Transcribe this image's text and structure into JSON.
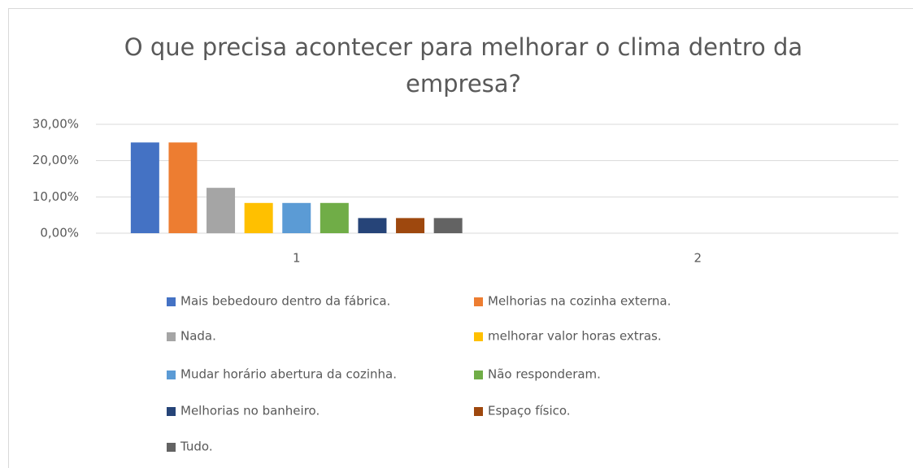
{
  "chart_data": {
    "type": "bar",
    "title": "O que precisa acontecer para melhorar o clima dentro da empresa?",
    "categories": [
      "1",
      "2"
    ],
    "series": [
      {
        "name": "Mais bebedouro dentro da fábrica.",
        "color": "#4472c4",
        "values": [
          25,
          null
        ]
      },
      {
        "name": "Melhorias na cozinha externa.",
        "color": "#ed7d31",
        "values": [
          25,
          null
        ]
      },
      {
        "name": "Nada.",
        "color": "#a5a5a5",
        "values": [
          12.5,
          null
        ]
      },
      {
        "name": "melhorar valor horas extras.",
        "color": "#ffc000",
        "values": [
          8.33,
          null
        ]
      },
      {
        "name": "Mudar horário abertura da cozinha.",
        "color": "#5b9bd5",
        "values": [
          8.33,
          null
        ]
      },
      {
        "name": "Não responderam.",
        "color": "#70ad47",
        "values": [
          8.33,
          null
        ]
      },
      {
        "name": "Melhorias no banheiro.",
        "color": "#264478",
        "values": [
          4.17,
          null
        ]
      },
      {
        "name": "Espaço físico.",
        "color": "#9e480e",
        "values": [
          4.17,
          null
        ]
      },
      {
        "name": "Tudo.",
        "color": "#636363",
        "values": [
          4.17,
          null
        ]
      }
    ],
    "ylim": [
      0,
      30
    ],
    "yticks": [
      {
        "value": 0,
        "label": "0,00%"
      },
      {
        "value": 10,
        "label": "10,00%"
      },
      {
        "value": 20,
        "label": "20,00%"
      },
      {
        "value": 30,
        "label": "30,00%"
      }
    ],
    "grid": true
  }
}
